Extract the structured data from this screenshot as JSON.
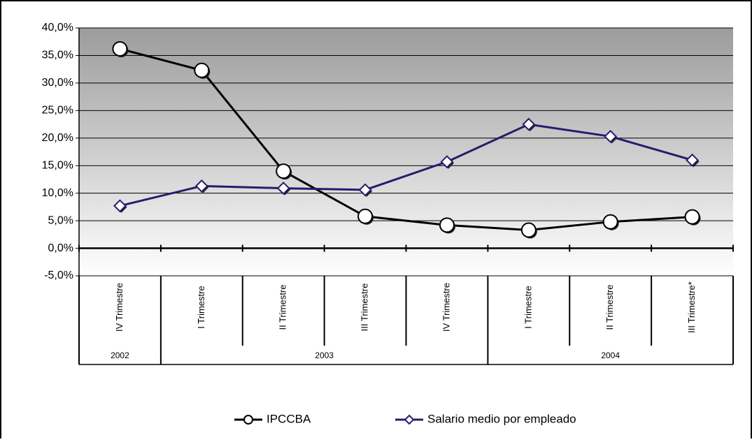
{
  "chart_data": {
    "type": "line",
    "groups": [
      {
        "name": "2002",
        "categories": [
          "IV Trimestre"
        ]
      },
      {
        "name": "2003",
        "categories": [
          "I Trimestre",
          "II Trimestre",
          "III Trimestre",
          "IV Trimestre"
        ]
      },
      {
        "name": "2004",
        "categories": [
          "I Trimestre",
          "II Trimestre",
          "III Trimestre*"
        ]
      }
    ],
    "series": [
      {
        "name": "IPCCBA",
        "color": "#000000",
        "marker": "circle",
        "values": [
          36.2,
          32.3,
          14.0,
          5.8,
          4.2,
          3.3,
          4.8,
          5.7
        ]
      },
      {
        "name": "Salario medio por empleado",
        "color": "#241c6e",
        "marker": "diamond",
        "values": [
          7.7,
          11.3,
          10.9,
          10.6,
          15.7,
          22.5,
          20.3,
          16.0
        ]
      }
    ],
    "ylim": [
      -5,
      40
    ],
    "yticks": [
      {
        "value": -5,
        "label": "-5,0%"
      },
      {
        "value": 0,
        "label": "0,0%"
      },
      {
        "value": 5,
        "label": "5,0%"
      },
      {
        "value": 10,
        "label": "10,0%"
      },
      {
        "value": 15,
        "label": "15,0%"
      },
      {
        "value": 20,
        "label": "20,0%"
      },
      {
        "value": 25,
        "label": "25,0%"
      },
      {
        "value": 30,
        "label": "30,0%"
      },
      {
        "value": 35,
        "label": "35,0%"
      },
      {
        "value": 40,
        "label": "40,0%"
      }
    ],
    "grid": true,
    "legend": "bottom"
  }
}
